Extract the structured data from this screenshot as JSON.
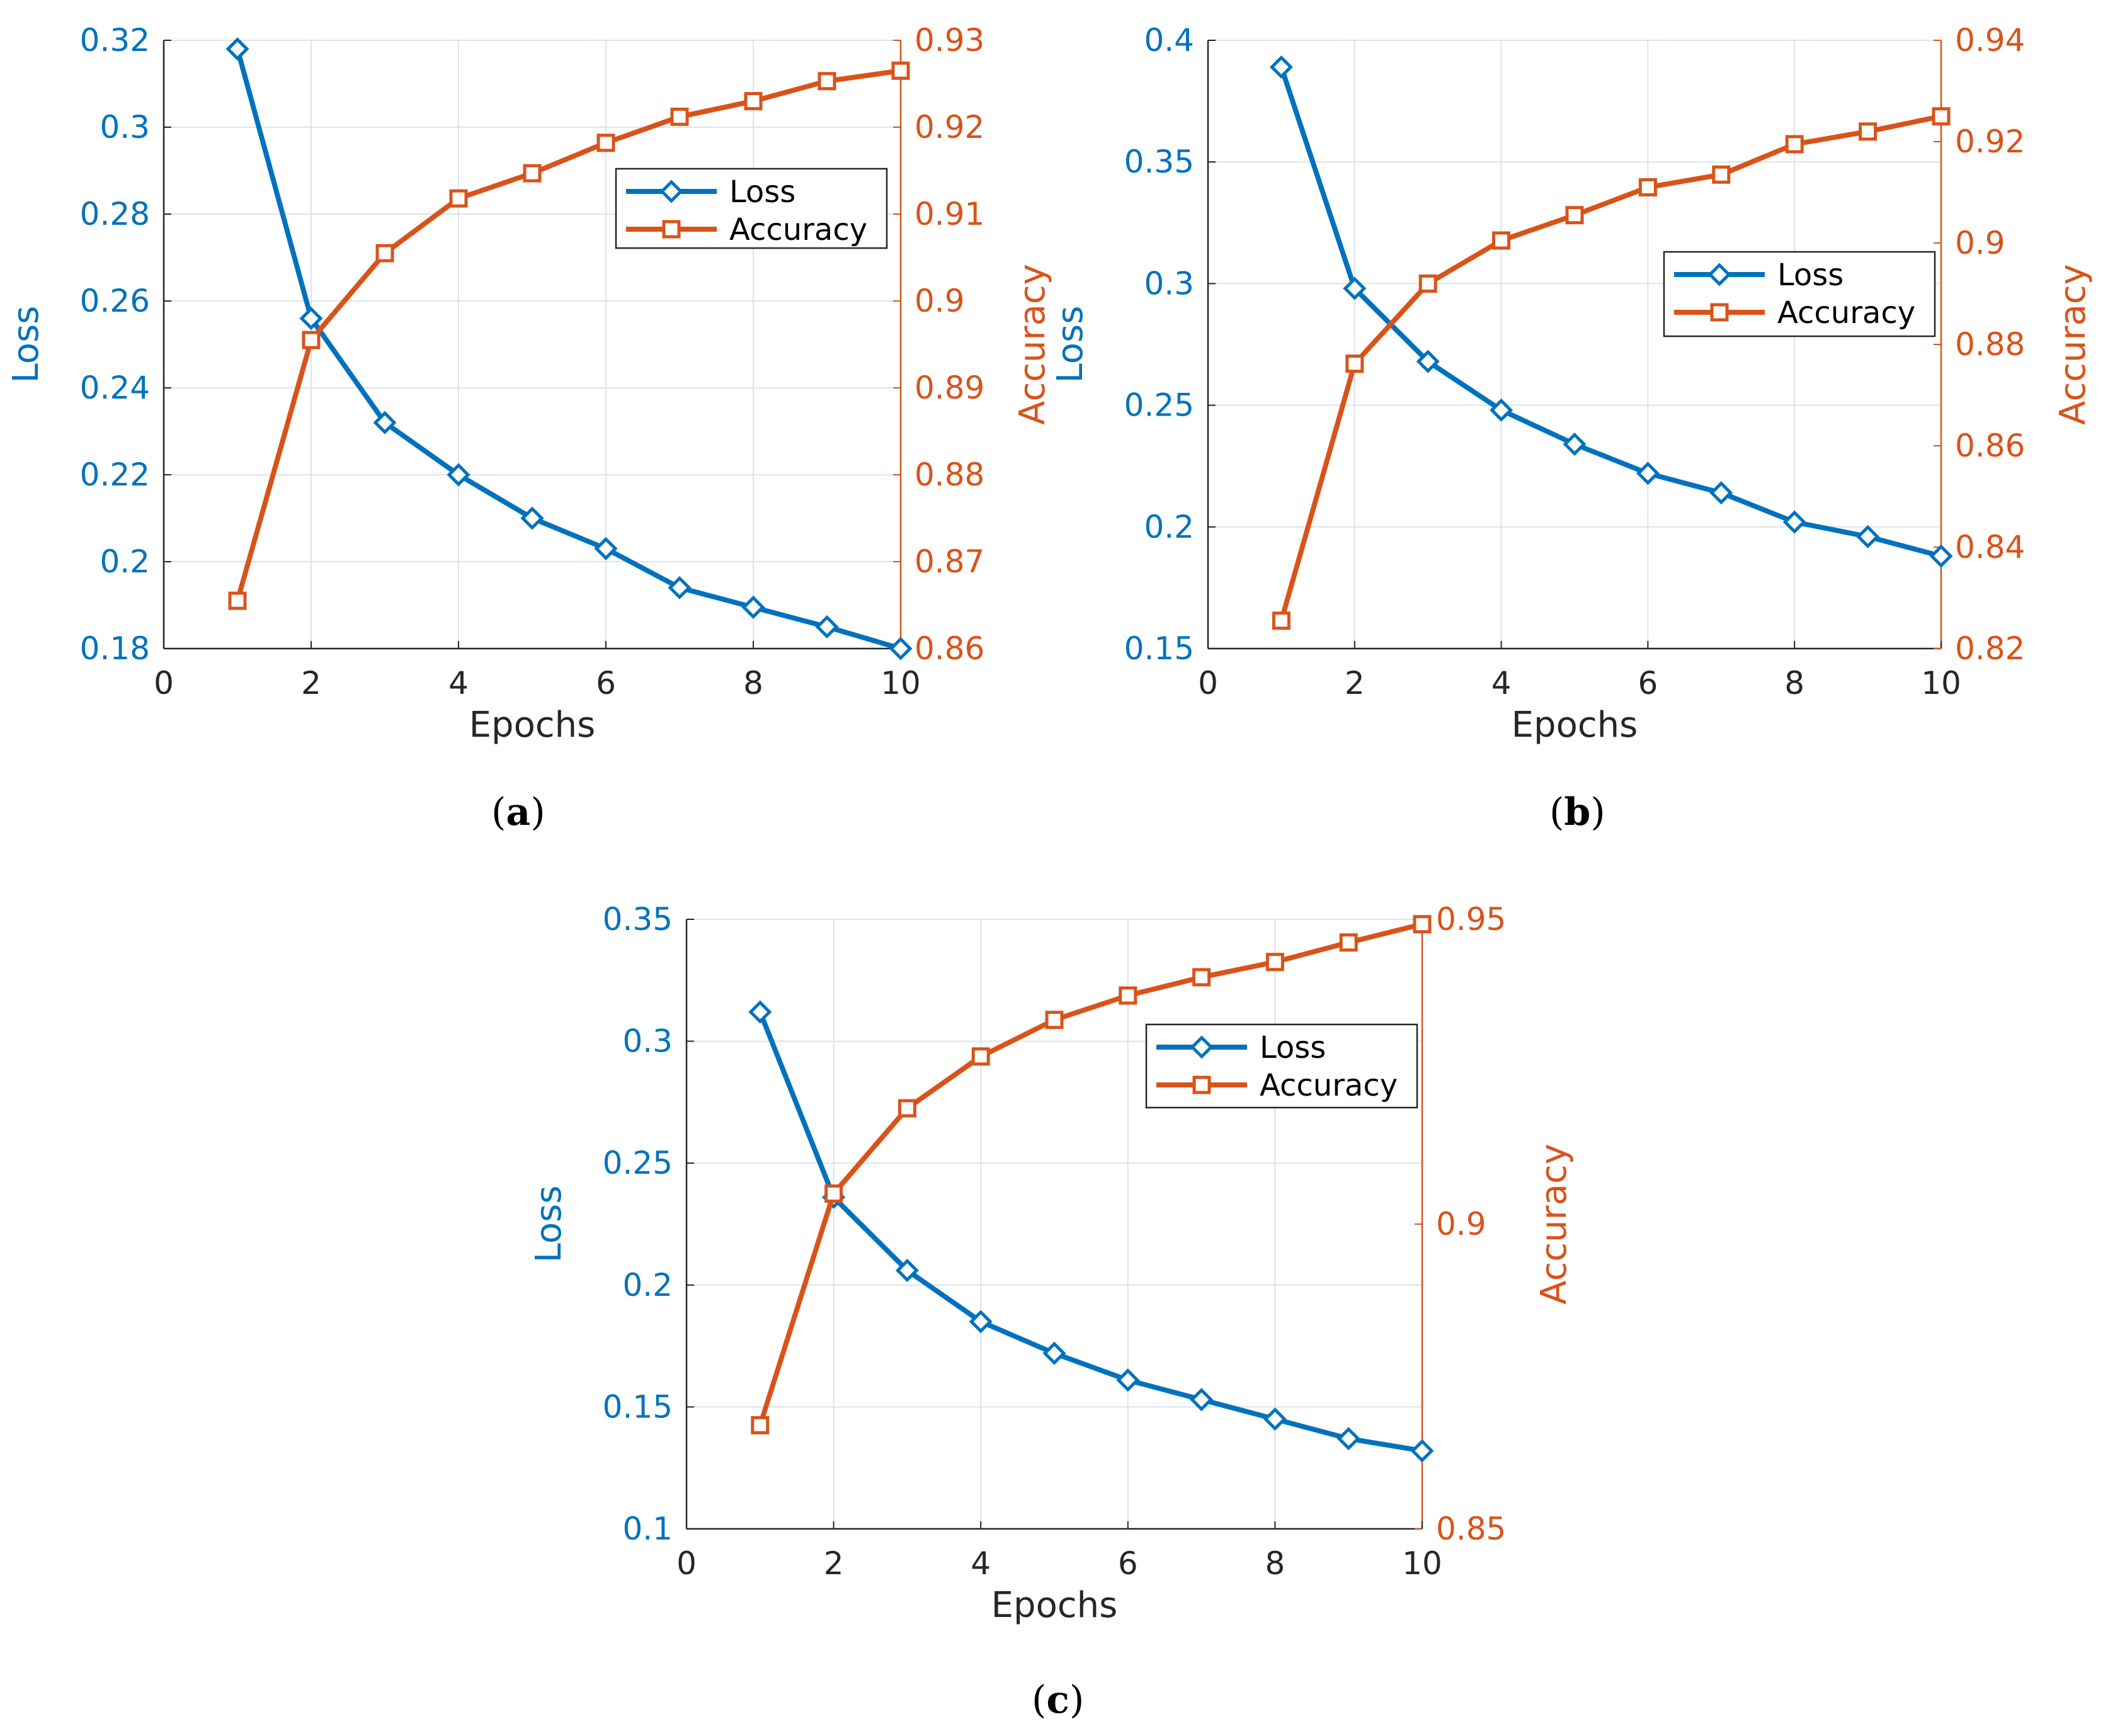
{
  "colors": {
    "loss": "#0072BD",
    "accuracy": "#D95319",
    "grid": "#DCE3EA",
    "axis": "#262626"
  },
  "chart_data": [
    {
      "id": "a",
      "caption": "a",
      "type": "line",
      "xlabel": "Epochs",
      "ylabel_left": "Loss",
      "ylabel_right": "Accuracy",
      "xlim": [
        0,
        10
      ],
      "xticks": [
        "0",
        "2",
        "4",
        "6",
        "8",
        "10"
      ],
      "ylim_left": [
        0.18,
        0.32
      ],
      "yticks_left": [
        "0.18",
        "0.2",
        "0.22",
        "0.24",
        "0.26",
        "0.28",
        "0.3",
        "0.32"
      ],
      "ylim_right": [
        0.86,
        0.93
      ],
      "yticks_right": [
        "0.86",
        "0.87",
        "0.88",
        "0.89",
        "0.9",
        "0.91",
        "0.92",
        "0.93"
      ],
      "grid": true,
      "legend_position": "upper-right",
      "series": [
        {
          "name": "Loss",
          "axis": "left",
          "marker": "diamond",
          "x": [
            1,
            2,
            3,
            4,
            5,
            6,
            7,
            8,
            9,
            10
          ],
          "values": [
            0.318,
            0.256,
            0.232,
            0.22,
            0.21,
            0.203,
            0.194,
            0.1895,
            0.185,
            0.18
          ]
        },
        {
          "name": "Accuracy",
          "axis": "right",
          "marker": "square",
          "x": [
            1,
            2,
            3,
            4,
            5,
            6,
            7,
            8,
            9,
            10
          ],
          "values": [
            0.8655,
            0.8955,
            0.9055,
            0.9118,
            0.9147,
            0.9182,
            0.9212,
            0.923,
            0.9253,
            0.9265
          ]
        }
      ]
    },
    {
      "id": "b",
      "caption": "b",
      "type": "line",
      "xlabel": "Epochs",
      "ylabel_left": "Loss",
      "ylabel_right": "Accuracy",
      "xlim": [
        0,
        10
      ],
      "xticks": [
        "0",
        "2",
        "4",
        "6",
        "8",
        "10"
      ],
      "ylim_left": [
        0.15,
        0.4
      ],
      "yticks_left": [
        "0.15",
        "0.2",
        "0.25",
        "0.3",
        "0.35",
        "0.4"
      ],
      "ylim_right": [
        0.82,
        0.94
      ],
      "yticks_right": [
        "0.82",
        "0.84",
        "0.86",
        "0.88",
        "0.9",
        "0.92",
        "0.94"
      ],
      "grid": true,
      "legend_position": "right",
      "series": [
        {
          "name": "Loss",
          "axis": "left",
          "marker": "diamond",
          "x": [
            1,
            2,
            3,
            4,
            5,
            6,
            7,
            8,
            9,
            10
          ],
          "values": [
            0.389,
            0.298,
            0.268,
            0.248,
            0.234,
            0.222,
            0.214,
            0.202,
            0.196,
            0.188
          ]
        },
        {
          "name": "Accuracy",
          "axis": "right",
          "marker": "square",
          "x": [
            1,
            2,
            3,
            4,
            5,
            6,
            7,
            8,
            9,
            10
          ],
          "values": [
            0.8255,
            0.8762,
            0.892,
            0.9005,
            0.9055,
            0.911,
            0.9135,
            0.9195,
            0.922,
            0.925
          ]
        }
      ]
    },
    {
      "id": "c",
      "caption": "c",
      "type": "line",
      "xlabel": "Epochs",
      "ylabel_left": "Loss",
      "ylabel_right": "Accuracy",
      "xlim": [
        0,
        10
      ],
      "xticks": [
        "0",
        "2",
        "4",
        "6",
        "8",
        "10"
      ],
      "ylim_left": [
        0.1,
        0.35
      ],
      "yticks_left": [
        "0.1",
        "0.15",
        "0.2",
        "0.25",
        "0.3",
        "0.35"
      ],
      "ylim_right": [
        0.85,
        0.95
      ],
      "yticks_right": [
        "0.85",
        "0.9",
        "0.95"
      ],
      "grid": true,
      "legend_position": "upper-right",
      "series": [
        {
          "name": "Loss",
          "axis": "left",
          "marker": "diamond",
          "x": [
            1,
            2,
            3,
            4,
            5,
            6,
            7,
            8,
            9,
            10
          ],
          "values": [
            0.312,
            0.236,
            0.206,
            0.185,
            0.172,
            0.161,
            0.153,
            0.145,
            0.137,
            0.132
          ]
        },
        {
          "name": "Accuracy",
          "axis": "right",
          "marker": "square",
          "x": [
            1,
            2,
            3,
            4,
            5,
            6,
            7,
            8,
            9,
            10
          ],
          "values": [
            0.867,
            0.905,
            0.919,
            0.9275,
            0.9335,
            0.9375,
            0.9405,
            0.943,
            0.9462,
            0.9492
          ]
        }
      ]
    }
  ]
}
